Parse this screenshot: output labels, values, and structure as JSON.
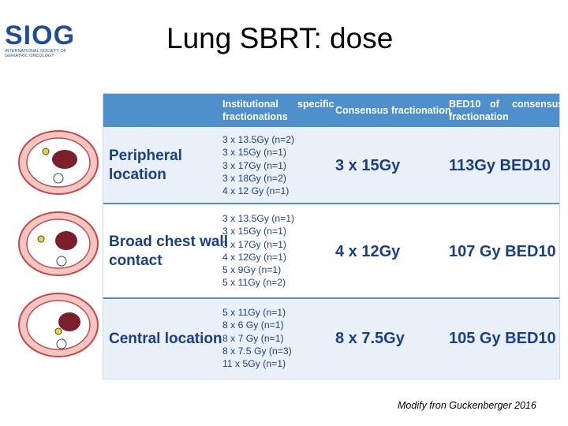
{
  "header": {
    "logo_text": "SIOG",
    "logo_subtitle": "INTERNATIONAL SOCIETY OF GERIATRIC ONCOLOGY",
    "title": "Lung SBRT: dose"
  },
  "table": {
    "headers": {
      "col1a": "Institutional",
      "col1b": "specific",
      "col1c": "fractionations",
      "col2": "Consensus fractionation",
      "col3a": "BED10",
      "col3b": "of",
      "col3c": "consensus",
      "col3d": "fractionation"
    },
    "rows": [
      {
        "label_line1": "Peripheral",
        "label_line2": "location",
        "fractionations": [
          "3 x 13.5Gy (n=2)",
          "3 x 15Gy (n=1)",
          "3 x 17Gy (n=1)",
          "3 x 18Gy (n=2)",
          "4 x 12 Gy (n=1)"
        ],
        "consensus": "3 x 15Gy",
        "bed": "113Gy BED10"
      },
      {
        "label_line1": "Broad  chest  wall",
        "label_line2": "contact",
        "fractionations": [
          "3 x 13.5Gy (n=1)",
          "3 x 15Gy (n=1)",
          "3 x 17Gy (n=1)",
          "4 x 12Gy (n=1)",
          "5 x 9Gy (n=1)",
          "5 x 11Gy (n=2)"
        ],
        "consensus": "4 x 12Gy",
        "bed": "107 Gy BED10"
      },
      {
        "label_line1": "Central location",
        "label_line2": "",
        "fractionations": [
          "5 x 11Gy (n=1)",
          "8 x 6 Gy (n=1)",
          "8 x 7 Gy (n=1)",
          "8 x 7.5 Gy (n=3)",
          "11 x 5Gy (n=1)"
        ],
        "consensus": "8 x 7.5Gy",
        "bed": "105 Gy BED10"
      }
    ]
  },
  "footnote": "Modify fron Guckenberger 2016",
  "colors": {
    "header_bg": "#4f8fcc",
    "text_blue": "#1a3f8a",
    "logo_blue": "#1f4e96",
    "row_alt_bg": "#eaf0f7"
  }
}
